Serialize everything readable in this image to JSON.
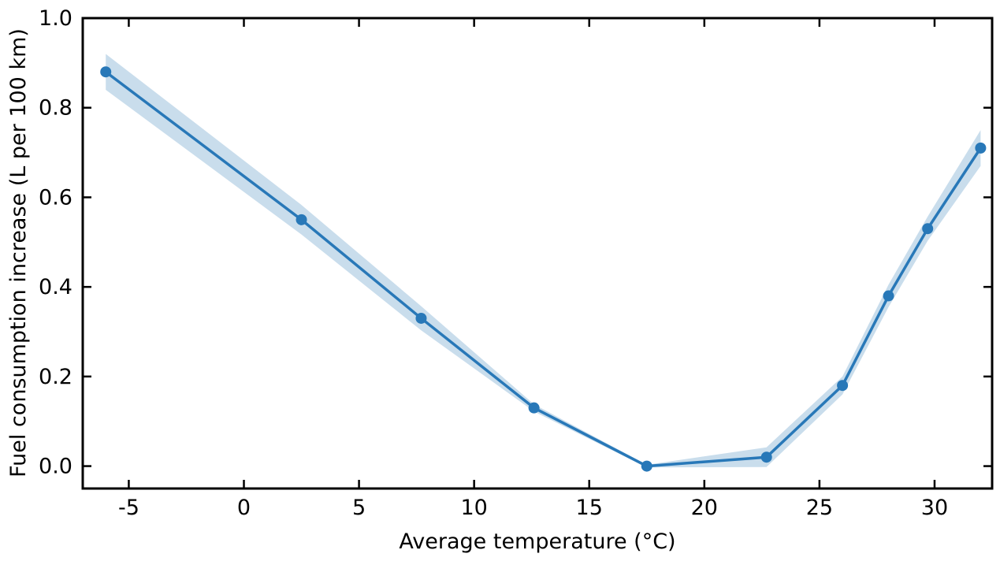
{
  "figure": {
    "title": "",
    "xlabel": "Average temperature (°C)",
    "ylabel": "Fuel consumption increase (L per 100 km)"
  },
  "chart_data": {
    "type": "line",
    "title": "",
    "xlabel": "Average temperature (°C)",
    "ylabel": "Fuel consumption increase (L per 100 km)",
    "x": [
      -6,
      2.5,
      7.7,
      12.6,
      17.5,
      22.7,
      26,
      28,
      29.7,
      32
    ],
    "series": [
      {
        "name": "fuel-consumption-increase",
        "values": [
          0.88,
          0.55,
          0.33,
          0.13,
          0.0,
          0.02,
          0.18,
          0.38,
          0.53,
          0.71
        ],
        "band_lower": [
          0.84,
          0.517,
          0.303,
          0.122,
          -0.003,
          -0.002,
          0.16,
          0.355,
          0.503,
          0.67
        ],
        "band_upper": [
          0.92,
          0.583,
          0.357,
          0.138,
          0.003,
          0.042,
          0.2,
          0.405,
          0.557,
          0.75
        ]
      }
    ],
    "xlim": [
      -7,
      32.5
    ],
    "ylim": [
      -0.05,
      1.0
    ],
    "xticks": {
      "values": [
        -5,
        0,
        5,
        10,
        15,
        20,
        25,
        30
      ],
      "labels": [
        "-5",
        "0",
        "5",
        "10",
        "15",
        "20",
        "25",
        "30"
      ]
    },
    "yticks": {
      "values": [
        0,
        0.2,
        0.4,
        0.6,
        0.8,
        1.0
      ],
      "labels": [
        "0.0",
        "0.2",
        "0.4",
        "0.6",
        "0.8",
        "1.0"
      ]
    },
    "grid": false,
    "legend": null,
    "marker": "circle",
    "colors": {
      "line": "#2878b8",
      "marker": "#2878b8",
      "band": "#c9ddec",
      "axis": "#000000",
      "background": "#ffffff"
    }
  }
}
